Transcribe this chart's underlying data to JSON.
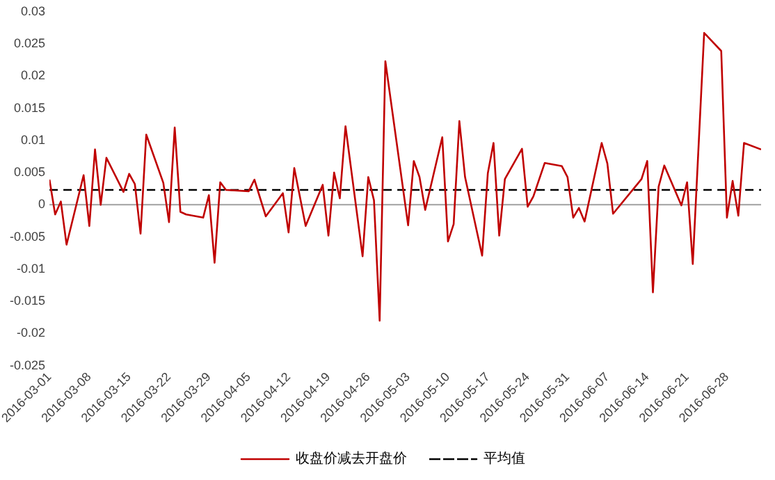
{
  "chart_data": {
    "type": "line",
    "x": [
      "2016-03-01",
      "2016-03-02",
      "2016-03-03",
      "2016-03-04",
      "2016-03-07",
      "2016-03-08",
      "2016-03-09",
      "2016-03-10",
      "2016-03-11",
      "2016-03-14",
      "2016-03-15",
      "2016-03-16",
      "2016-03-17",
      "2016-03-18",
      "2016-03-21",
      "2016-03-22",
      "2016-03-23",
      "2016-03-24",
      "2016-03-25",
      "2016-03-28",
      "2016-03-29",
      "2016-03-30",
      "2016-03-31",
      "2016-04-01",
      "2016-04-05",
      "2016-04-06",
      "2016-04-08",
      "2016-04-11",
      "2016-04-12",
      "2016-04-13",
      "2016-04-15",
      "2016-04-18",
      "2016-04-19",
      "2016-04-20",
      "2016-04-21",
      "2016-04-22",
      "2016-04-25",
      "2016-04-26",
      "2016-04-27",
      "2016-04-28",
      "2016-04-29",
      "2016-05-03",
      "2016-05-04",
      "2016-05-05",
      "2016-05-06",
      "2016-05-09",
      "2016-05-10",
      "2016-05-11",
      "2016-05-12",
      "2016-05-13",
      "2016-05-16",
      "2016-05-17",
      "2016-05-18",
      "2016-05-19",
      "2016-05-20",
      "2016-05-23",
      "2016-05-24",
      "2016-05-25",
      "2016-05-27",
      "2016-05-30",
      "2016-05-31",
      "2016-06-01",
      "2016-06-02",
      "2016-06-03",
      "2016-06-06",
      "2016-06-07",
      "2016-06-08",
      "2016-06-13",
      "2016-06-14",
      "2016-06-15",
      "2016-06-16",
      "2016-06-17",
      "2016-06-20",
      "2016-06-21",
      "2016-06-22",
      "2016-06-24",
      "2016-06-27",
      "2016-06-28",
      "2016-06-29",
      "2016-06-30",
      "2016-07-01",
      "2016-07-04"
    ],
    "series": [
      {
        "name": "收盘价减去开盘价",
        "color": "#c00000",
        "values": [
          0.0039,
          -0.0015,
          0.0005,
          -0.0062,
          0.0046,
          -0.0033,
          0.0086,
          0.0,
          0.0073,
          0.002,
          0.0048,
          0.0032,
          -0.0045,
          0.0109,
          0.0034,
          -0.0027,
          0.012,
          -0.0011,
          -0.0015,
          -0.002,
          0.0015,
          -0.009,
          0.0035,
          0.0023,
          0.0021,
          0.0039,
          -0.0018,
          0.0018,
          -0.0043,
          0.0057,
          -0.0033,
          0.0031,
          -0.0048,
          0.005,
          0.001,
          0.0122,
          -0.008,
          0.0043,
          0.0007,
          -0.018,
          0.0223,
          -0.0032,
          0.0068,
          0.0043,
          -0.0008,
          0.0105,
          -0.0057,
          -0.003,
          0.013,
          0.0043,
          -0.0079,
          0.0049,
          0.0096,
          -0.0048,
          0.004,
          0.0087,
          -0.0003,
          0.0013,
          0.0065,
          0.006,
          0.0043,
          -0.002,
          -0.0005,
          -0.0026,
          0.0096,
          0.0064,
          -0.0014,
          0.004,
          0.0068,
          -0.0136,
          0.0028,
          0.0061,
          -0.0001,
          0.0035,
          -0.0092,
          0.0267,
          0.0239,
          -0.002,
          0.0037,
          -0.0017,
          0.0096,
          0.0086
        ]
      },
      {
        "name": "平均值",
        "color": "#000000",
        "line_style": "dashed",
        "x": [
          "2016-03-01",
          "2016-07-04"
        ],
        "values": [
          0.0023,
          0.0023
        ]
      }
    ],
    "xlim": [
      "2016-03-01",
      "2016-07-04"
    ],
    "xticks": [
      "2016-03-01",
      "2016-03-08",
      "2016-03-15",
      "2016-03-22",
      "2016-03-29",
      "2016-04-05",
      "2016-04-12",
      "2016-04-19",
      "2016-04-26",
      "2016-05-03",
      "2016-05-10",
      "2016-05-17",
      "2016-05-24",
      "2016-05-31",
      "2016-06-07",
      "2016-06-14",
      "2016-06-21",
      "2016-06-28"
    ],
    "ylim": [
      -0.025,
      0.03
    ],
    "yticks": [
      -0.025,
      -0.02,
      -0.015,
      -0.01,
      -0.005,
      0,
      0.005,
      0.01,
      0.015,
      0.02,
      0.025,
      0.03
    ],
    "ref_lines": [
      {
        "axis": "y",
        "value": 0,
        "color": "#a0a0a0"
      }
    ],
    "legend": "bottom",
    "marker": "none",
    "line_style": "solid"
  }
}
